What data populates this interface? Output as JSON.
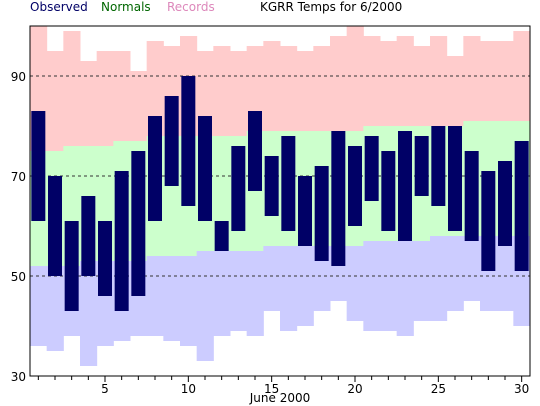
{
  "chart_data": {
    "type": "bar",
    "title": "KGRR Temps for 6/2000",
    "xlabel": "June 2000",
    "ylabel": "",
    "xlim": [
      0.5,
      30.5
    ],
    "ylim": [
      30,
      100
    ],
    "yticks": [
      30,
      50,
      70,
      90
    ],
    "xticks": [
      5,
      10,
      15,
      20,
      25,
      30
    ],
    "gridlines_y": [
      50,
      70,
      90
    ],
    "legend": [
      {
        "name": "Observed",
        "color": "#000066"
      },
      {
        "name": "Normals",
        "color": "#006600"
      },
      {
        "name": "Records",
        "color": "#dd88bb"
      }
    ],
    "colors": {
      "observed": "#000066",
      "normal_band": "#ccffcc",
      "record_high_band": "#ffcccc",
      "record_low_band": "#ccccff",
      "gridline": "#333333"
    },
    "days": [
      1,
      2,
      3,
      4,
      5,
      6,
      7,
      8,
      9,
      10,
      11,
      12,
      13,
      14,
      15,
      16,
      17,
      18,
      19,
      20,
      21,
      22,
      23,
      24,
      25,
      26,
      27,
      28,
      29,
      30
    ],
    "series": [
      {
        "name": "Observed",
        "high": [
          83,
          70,
          61,
          66,
          61,
          71,
          75,
          82,
          86,
          90,
          82,
          61,
          76,
          83,
          74,
          78,
          70,
          72,
          79,
          76,
          78,
          75,
          79,
          78,
          80,
          80,
          75,
          71,
          73,
          77
        ],
        "low": [
          61,
          50,
          43,
          50,
          46,
          43,
          46,
          61,
          68,
          64,
          61,
          55,
          59,
          67,
          62,
          59,
          56,
          53,
          52,
          60,
          65,
          59,
          57,
          66,
          64,
          59,
          57,
          51,
          56,
          51
        ]
      },
      {
        "name": "Normals",
        "high": [
          75,
          75,
          76,
          76,
          76,
          77,
          77,
          78,
          78,
          78,
          78,
          78,
          78,
          79,
          79,
          79,
          79,
          79,
          79,
          79,
          80,
          80,
          80,
          80,
          80,
          80,
          81,
          81,
          81,
          81
        ],
        "low": [
          52,
          52,
          52,
          53,
          53,
          53,
          53,
          54,
          54,
          54,
          55,
          55,
          55,
          55,
          56,
          56,
          56,
          56,
          56,
          56,
          57,
          57,
          57,
          57,
          58,
          58,
          58,
          58,
          58,
          58
        ]
      },
      {
        "name": "Records",
        "high": [
          102,
          95,
          99,
          93,
          95,
          95,
          91,
          97,
          96,
          98,
          95,
          96,
          95,
          96,
          97,
          96,
          95,
          96,
          98,
          102,
          98,
          97,
          98,
          96,
          98,
          94,
          98,
          97,
          97,
          99
        ],
        "low": [
          36,
          35,
          38,
          32,
          36,
          37,
          38,
          38,
          37,
          36,
          33,
          38,
          39,
          38,
          43,
          39,
          40,
          43,
          45,
          41,
          39,
          39,
          38,
          41,
          41,
          43,
          45,
          43,
          43,
          40
        ]
      }
    ]
  }
}
